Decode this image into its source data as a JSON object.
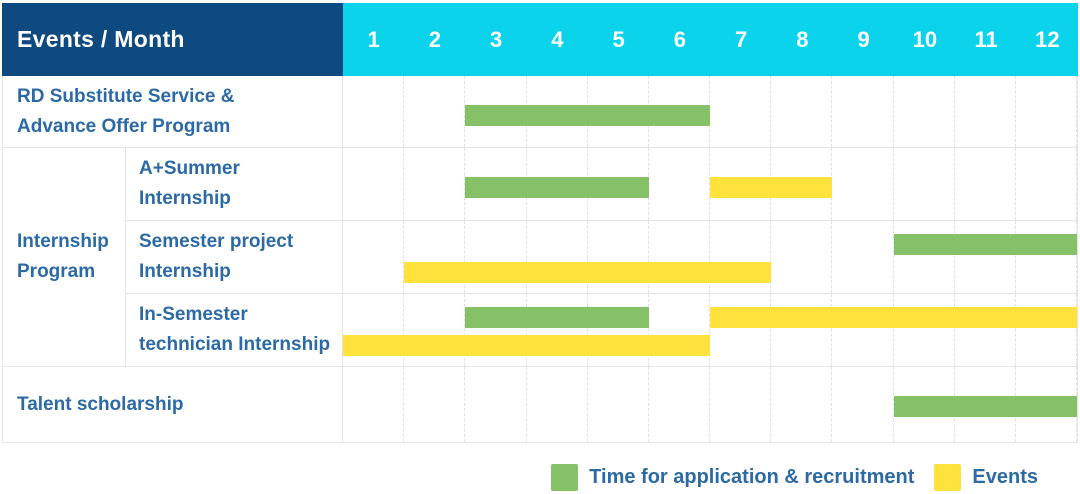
{
  "colors": {
    "header_bg": "#0e4a7f",
    "months_bg": "#0bd3ec",
    "label_text": "#2b6aa5",
    "green": "#85c166",
    "yellow": "#ffe33c",
    "grid_solid": "#e4e4e4",
    "grid_dash": "#e0e0e0"
  },
  "header": {
    "title": "Events / Month",
    "months": [
      "1",
      "2",
      "3",
      "4",
      "5",
      "6",
      "7",
      "8",
      "9",
      "10",
      "11",
      "12"
    ]
  },
  "legend": {
    "items": [
      {
        "type": "application",
        "color": "#85c166",
        "label": "Time for application & recruitment"
      },
      {
        "type": "event",
        "color": "#ffe33c",
        "label": "Events"
      }
    ]
  },
  "chart_data": {
    "type": "bar",
    "subtype": "gantt-schedule",
    "title": "Events / Month",
    "x_axis": {
      "unit": "month",
      "ticks": [
        1,
        2,
        3,
        4,
        5,
        6,
        7,
        8,
        9,
        10,
        11,
        12
      ],
      "range": [
        1,
        12
      ]
    },
    "bar_types": {
      "application": "Time for application & recruitment (green)",
      "event": "Events (yellow)"
    },
    "group_label": {
      "text": "Internship Program",
      "label_lines": [
        "Internship",
        "Program"
      ]
    },
    "rows": [
      {
        "group": "",
        "label": "RD Substitute Service & Advance Offer Program",
        "label_lines": [
          "RD Substitute Service &",
          "Advance Offer Program"
        ],
        "bars": [
          {
            "type": "application",
            "start": 3,
            "end": 6,
            "lane": "single"
          }
        ]
      },
      {
        "group": "Internship Program",
        "label": "A+Summer Internship",
        "label_lines": [
          "A+Summer",
          "Internship"
        ],
        "bars": [
          {
            "type": "application",
            "start": 3,
            "end": 5,
            "lane": "single"
          },
          {
            "type": "event",
            "start": 7,
            "end": 8,
            "lane": "single"
          }
        ]
      },
      {
        "group": "Internship Program",
        "label": "Semester project Internship",
        "label_lines": [
          "Semester project",
          "Internship"
        ],
        "bars": [
          {
            "type": "application",
            "start": 10,
            "end": 12,
            "lane": "upper"
          },
          {
            "type": "event",
            "start": 2,
            "end": 7,
            "lane": "lower"
          }
        ]
      },
      {
        "group": "Internship Program",
        "label": "In-Semester technician Internship",
        "label_lines": [
          "In-Semester",
          "technician Internship"
        ],
        "bars": [
          {
            "type": "application",
            "start": 3,
            "end": 5,
            "lane": "upper"
          },
          {
            "type": "event",
            "start": 7,
            "end": 12,
            "lane": "upper"
          },
          {
            "type": "event",
            "start": 1,
            "end": 6,
            "lane": "lower"
          }
        ]
      },
      {
        "group": "",
        "label": "Talent scholarship",
        "label_lines": [
          "Talent scholarship"
        ],
        "bars": [
          {
            "type": "application",
            "start": 10,
            "end": 12,
            "lane": "single"
          }
        ]
      }
    ]
  }
}
